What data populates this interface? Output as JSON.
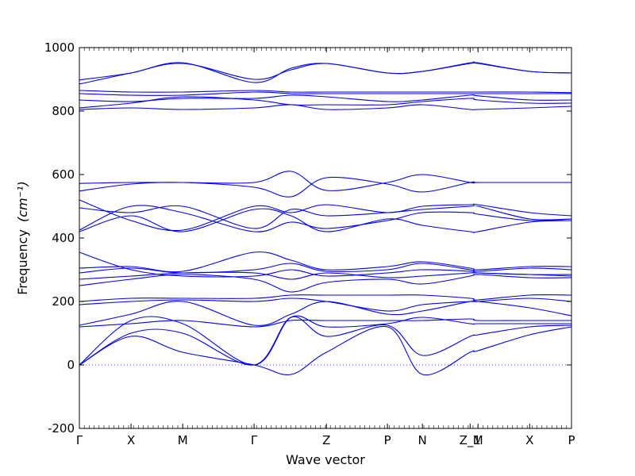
{
  "chart_data": {
    "type": "line",
    "title": "",
    "xlabel": "Wave vector",
    "ylabel": "Frequency",
    "ylabel_unit": "(cm⁻¹)",
    "ylim": [
      -200,
      1000
    ],
    "y_ticks": [
      -200,
      0,
      200,
      400,
      600,
      800,
      1000
    ],
    "x_ticks": [
      {
        "label": "Γ",
        "x": 0.0
      },
      {
        "label": "X",
        "x": 0.105
      },
      {
        "label": "M",
        "x": 0.21
      },
      {
        "label": "Γ",
        "x": 0.355
      },
      {
        "label": "Z",
        "x": 0.502
      },
      {
        "label": "P",
        "x": 0.626
      },
      {
        "label": "N",
        "x": 0.697
      },
      {
        "label": "Z_1",
        "x": 0.794
      },
      {
        "label": "M",
        "x": 0.81
      },
      {
        "label": "X",
        "x": 0.915
      },
      {
        "label": "P",
        "x": 1.0
      }
    ],
    "zero_line": true,
    "series_color": "#0000ff",
    "series": [
      {
        "x": [
          0,
          0.105,
          0.21,
          0.355,
          0.43,
          0.502,
          0.626,
          0.697,
          0.794,
          0.81,
          0.915,
          1.0
        ],
        "y": [
          0,
          90,
          40,
          0,
          -30,
          40,
          120,
          -30,
          40,
          45,
          95,
          120
        ]
      },
      {
        "x": [
          0,
          0.105,
          0.21,
          0.355,
          0.43,
          0.502,
          0.626,
          0.697,
          0.794,
          0.81,
          0.915,
          1.0
        ],
        "y": [
          0,
          100,
          100,
          0,
          150,
          90,
          125,
          30,
          90,
          95,
          120,
          125
        ]
      },
      {
        "x": [
          0,
          0.105,
          0.21,
          0.355,
          0.43,
          0.502,
          0.626,
          0.697,
          0.794,
          0.81,
          0.915,
          1.0
        ],
        "y": [
          0,
          140,
          130,
          0,
          150,
          120,
          130,
          150,
          130,
          130,
          130,
          130
        ]
      },
      {
        "x": [
          0,
          0.105,
          0.21,
          0.355,
          0.43,
          0.502,
          0.626,
          0.697,
          0.794,
          0.81,
          0.915,
          1.0
        ],
        "y": [
          120,
          130,
          140,
          120,
          140,
          140,
          140,
          140,
          145,
          140,
          140,
          140
        ]
      },
      {
        "x": [
          0,
          0.105,
          0.21,
          0.355,
          0.43,
          0.502,
          0.626,
          0.697,
          0.794,
          0.81,
          0.915,
          1.0
        ],
        "y": [
          125,
          160,
          200,
          125,
          160,
          200,
          160,
          170,
          200,
          200,
          180,
          155
        ]
      },
      {
        "x": [
          0,
          0.105,
          0.21,
          0.355,
          0.43,
          0.502,
          0.626,
          0.697,
          0.794,
          0.81,
          0.915,
          1.0
        ],
        "y": [
          190,
          200,
          205,
          200,
          210,
          200,
          170,
          190,
          200,
          200,
          210,
          200
        ]
      },
      {
        "x": [
          0,
          0.105,
          0.21,
          0.355,
          0.43,
          0.502,
          0.626,
          0.697,
          0.794,
          0.81,
          0.915,
          1.0
        ],
        "y": [
          200,
          210,
          210,
          210,
          220,
          220,
          220,
          220,
          210,
          205,
          220,
          220
        ]
      },
      {
        "x": [
          0,
          0.105,
          0.21,
          0.355,
          0.43,
          0.502,
          0.626,
          0.697,
          0.794,
          0.81,
          0.915,
          1.0
        ],
        "y": [
          250,
          270,
          285,
          270,
          230,
          260,
          270,
          255,
          280,
          285,
          275,
          275
        ]
      },
      {
        "x": [
          0,
          0.105,
          0.21,
          0.355,
          0.43,
          0.502,
          0.626,
          0.697,
          0.794,
          0.81,
          0.915,
          1.0
        ],
        "y": [
          270,
          280,
          290,
          290,
          270,
          290,
          275,
          280,
          290,
          290,
          285,
          280
        ]
      },
      {
        "x": [
          0,
          0.105,
          0.21,
          0.355,
          0.43,
          0.502,
          0.626,
          0.697,
          0.794,
          0.81,
          0.915,
          1.0
        ],
        "y": [
          290,
          305,
          290,
          300,
          320,
          295,
          300,
          320,
          300,
          295,
          305,
          300
        ]
      },
      {
        "x": [
          0,
          0.105,
          0.21,
          0.355,
          0.43,
          0.502,
          0.626,
          0.697,
          0.794,
          0.81,
          0.915,
          1.0
        ],
        "y": [
          305,
          310,
          295,
          355,
          330,
          300,
          310,
          325,
          305,
          300,
          310,
          310
        ]
      },
      {
        "x": [
          0,
          0.105,
          0.21,
          0.355,
          0.43,
          0.502,
          0.626,
          0.697,
          0.794,
          0.81,
          0.915,
          1.0
        ],
        "y": [
          355,
          300,
          280,
          280,
          300,
          280,
          290,
          300,
          295,
          290,
          285,
          285
        ]
      },
      {
        "x": [
          0,
          0.105,
          0.21,
          0.355,
          0.43,
          0.502,
          0.626,
          0.697,
          0.794,
          0.81,
          0.915,
          1.0
        ],
        "y": [
          420,
          470,
          420,
          490,
          470,
          420,
          460,
          440,
          420,
          420,
          450,
          455
        ]
      },
      {
        "x": [
          0,
          0.105,
          0.21,
          0.355,
          0.43,
          0.502,
          0.626,
          0.697,
          0.794,
          0.81,
          0.915,
          1.0
        ],
        "y": [
          425,
          500,
          480,
          420,
          450,
          430,
          455,
          480,
          480,
          475,
          455,
          460
        ]
      },
      {
        "x": [
          0,
          0.105,
          0.21,
          0.355,
          0.43,
          0.502,
          0.626,
          0.697,
          0.794,
          0.81,
          0.915,
          1.0
        ],
        "y": [
          495,
          480,
          500,
          430,
          490,
          470,
          480,
          490,
          500,
          500,
          460,
          460
        ]
      },
      {
        "x": [
          0,
          0.105,
          0.21,
          0.355,
          0.43,
          0.502,
          0.626,
          0.697,
          0.794,
          0.81,
          0.915,
          1.0
        ],
        "y": [
          520,
          455,
          425,
          500,
          480,
          505,
          480,
          500,
          505,
          505,
          480,
          470
        ]
      },
      {
        "x": [
          0,
          0.105,
          0.21,
          0.355,
          0.43,
          0.502,
          0.626,
          0.697,
          0.794,
          0.81,
          0.915,
          1.0
        ],
        "y": [
          548,
          570,
          575,
          560,
          530,
          590,
          570,
          545,
          575,
          575,
          575,
          575
        ]
      },
      {
        "x": [
          0,
          0.105,
          0.21,
          0.355,
          0.43,
          0.502,
          0.626,
          0.697,
          0.794,
          0.81,
          0.915,
          1.0
        ],
        "y": [
          572,
          575,
          575,
          575,
          610,
          550,
          575,
          600,
          575,
          575,
          575,
          575
        ]
      },
      {
        "x": [
          0,
          0.105,
          0.21,
          0.355,
          0.43,
          0.502,
          0.626,
          0.697,
          0.794,
          0.81,
          0.915,
          1.0
        ],
        "y": [
          805,
          810,
          805,
          810,
          820,
          805,
          810,
          820,
          805,
          805,
          810,
          815
        ]
      },
      {
        "x": [
          0,
          0.105,
          0.21,
          0.355,
          0.43,
          0.502,
          0.626,
          0.697,
          0.794,
          0.81,
          0.915,
          1.0
        ],
        "y": [
          810,
          825,
          845,
          835,
          820,
          820,
          820,
          830,
          840,
          835,
          825,
          825
        ]
      },
      {
        "x": [
          0,
          0.105,
          0.21,
          0.355,
          0.43,
          0.502,
          0.626,
          0.697,
          0.794,
          0.81,
          0.915,
          1.0
        ],
        "y": [
          835,
          830,
          840,
          840,
          850,
          845,
          830,
          835,
          850,
          848,
          835,
          835
        ]
      },
      {
        "x": [
          0,
          0.105,
          0.21,
          0.355,
          0.43,
          0.502,
          0.626,
          0.697,
          0.794,
          0.81,
          0.915,
          1.0
        ],
        "y": [
          855,
          850,
          850,
          860,
          855,
          855,
          855,
          855,
          855,
          855,
          855,
          855
        ]
      },
      {
        "x": [
          0,
          0.105,
          0.21,
          0.355,
          0.43,
          0.502,
          0.626,
          0.697,
          0.794,
          0.81,
          0.915,
          1.0
        ],
        "y": [
          865,
          860,
          860,
          865,
          860,
          860,
          860,
          860,
          860,
          860,
          860,
          858
        ]
      },
      {
        "x": [
          0,
          0.105,
          0.21,
          0.355,
          0.43,
          0.502,
          0.626,
          0.697,
          0.794,
          0.81,
          0.915,
          1.0
        ],
        "y": [
          885,
          920,
          950,
          900,
          930,
          950,
          920,
          925,
          950,
          950,
          925,
          920
        ]
      },
      {
        "x": [
          0,
          0.105,
          0.21,
          0.355,
          0.43,
          0.502,
          0.626,
          0.697,
          0.794,
          0.81,
          0.915,
          1.0
        ],
        "y": [
          898,
          920,
          952,
          890,
          935,
          950,
          920,
          925,
          952,
          952,
          925,
          920
        ]
      }
    ]
  }
}
